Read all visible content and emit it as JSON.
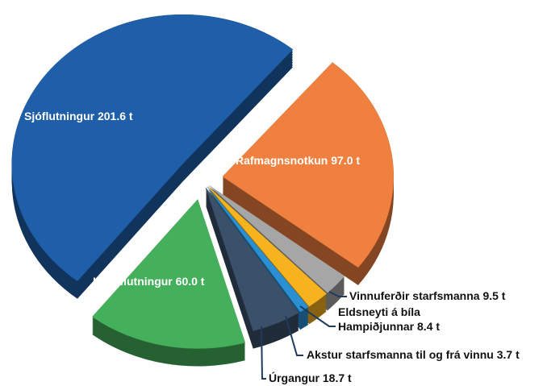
{
  "chart_data": {
    "type": "pie",
    "categories": [
      "Rafmagnsnotkun",
      "Vinnuferðir starfsmanna",
      "Eldsneyti á bíla Hampiðjunnar",
      "Akstur starfsmanna til og frá vinnu",
      "Úrgangur",
      "Landflutningur",
      "Sjóflutningur"
    ],
    "values": [
      97.0,
      9.5,
      8.4,
      3.7,
      18.7,
      60.0,
      201.6
    ],
    "value_labels": [
      "97.0 t",
      "9.5 t",
      "8.4 t",
      "3.7 t",
      "18.7 t",
      "60.0 t",
      "201.6 t"
    ],
    "colors": [
      "#f0803f",
      "#a6a6a6",
      "#f7b31e",
      "#2a90d2",
      "#3b5069",
      "#45b05b",
      "#1f5ea8"
    ]
  }
}
